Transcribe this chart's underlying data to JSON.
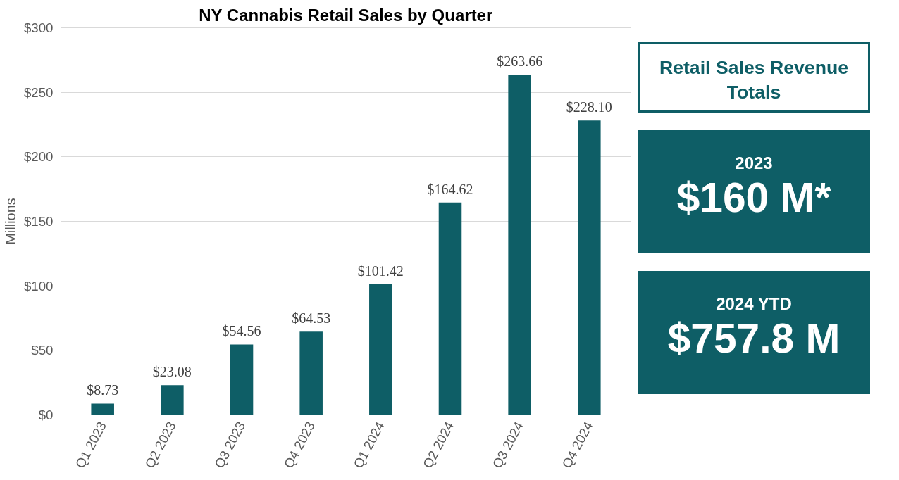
{
  "chart_data": [
    {
      "type": "bar",
      "title": "NY Cannabis Retail Sales by Quarter",
      "ylabel": "Millions",
      "categories": [
        "Q1 2023",
        "Q2 2023",
        "Q3 2023",
        "Q4 2023",
        "Q1 2024",
        "Q2 2024",
        "Q3 2024",
        "Q4 2024"
      ],
      "values": [
        8.73,
        23.08,
        54.56,
        64.53,
        101.42,
        164.62,
        263.66,
        228.1
      ],
      "value_labels": [
        "$8.73",
        "$23.08",
        "$54.56",
        "$64.53",
        "$101.42",
        "$164.62",
        "$263.66",
        "$228.10"
      ],
      "color": "#0e5e66",
      "ylim": [
        0,
        300
      ],
      "yticks": [
        {
          "value": 0,
          "label": "$0"
        },
        {
          "value": 50,
          "label": "$50"
        },
        {
          "value": 100,
          "label": "$100"
        },
        {
          "value": 150,
          "label": "$150"
        },
        {
          "value": 200,
          "label": "$200"
        },
        {
          "value": 250,
          "label": "$250"
        },
        {
          "value": 300,
          "label": "$300"
        }
      ],
      "grid": "y"
    },
    {
      "type": "other",
      "title": "Retail Sales Revenue Totals",
      "annotations": [
        "2023",
        "$160 M*",
        "2024 YTD",
        "$757.8 M"
      ]
    }
  ]
}
